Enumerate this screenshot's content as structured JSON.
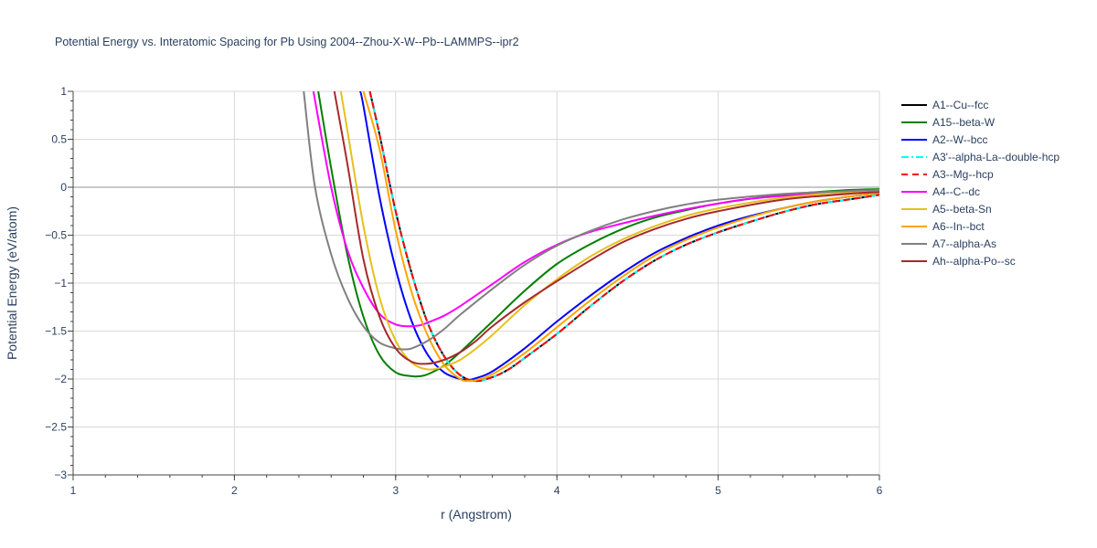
{
  "chart_data": {
    "type": "line",
    "title": "Potential Energy vs. Interatomic Spacing for Pb Using 2004--Zhou-X-W--Pb--LAMMPS--ipr2",
    "xlabel": "r (Angstrom)",
    "ylabel": "Potential Energy (eV/atom)",
    "xlim": [
      1,
      6
    ],
    "ylim": [
      -3,
      1
    ],
    "xticks": [
      1,
      2,
      3,
      4,
      5,
      6
    ],
    "yticks": [
      1,
      0.5,
      0,
      -0.5,
      -1,
      -1.5,
      -2,
      -2.5,
      -3
    ],
    "ytick_labels": [
      "1",
      "0.5",
      "0",
      "−0.5",
      "−1",
      "−1.5",
      "−2",
      "−2.5",
      "−3"
    ],
    "grid": true,
    "legend_position": "right",
    "series": [
      {
        "name": "A1--Cu--fcc",
        "color": "#000000",
        "dash": "solid",
        "x": [
          2.84,
          2.9,
          3.0,
          3.1,
          3.2,
          3.3,
          3.4,
          3.5,
          3.6,
          3.7,
          3.8,
          4.0,
          4.2,
          4.4,
          4.6,
          4.8,
          5.0,
          5.2,
          5.4,
          5.6,
          5.8,
          6.0
        ],
        "y": [
          1.0,
          0.55,
          -0.25,
          -0.9,
          -1.42,
          -1.76,
          -1.96,
          -2.02,
          -1.98,
          -1.9,
          -1.78,
          -1.53,
          -1.25,
          -0.99,
          -0.77,
          -0.6,
          -0.47,
          -0.36,
          -0.26,
          -0.18,
          -0.13,
          -0.08
        ]
      },
      {
        "name": "A15--beta-W",
        "color": "#008000",
        "dash": "solid",
        "x": [
          2.52,
          2.6,
          2.7,
          2.8,
          2.9,
          3.0,
          3.1,
          3.15,
          3.2,
          3.3,
          3.4,
          3.5,
          3.6,
          3.8,
          4.0,
          4.2,
          4.4,
          4.6,
          4.8,
          5.0,
          5.4,
          5.8,
          6.0
        ],
        "y": [
          1.0,
          0.2,
          -0.7,
          -1.35,
          -1.75,
          -1.93,
          -1.97,
          -1.97,
          -1.95,
          -1.86,
          -1.72,
          -1.56,
          -1.4,
          -1.08,
          -0.8,
          -0.6,
          -0.44,
          -0.32,
          -0.24,
          -0.17,
          -0.08,
          -0.03,
          -0.02
        ]
      },
      {
        "name": "A2--W--bcc",
        "color": "#0000ff",
        "dash": "solid",
        "x": [
          2.78,
          2.8,
          2.9,
          3.0,
          3.1,
          3.2,
          3.3,
          3.4,
          3.45,
          3.5,
          3.6,
          3.8,
          4.0,
          4.2,
          4.4,
          4.6,
          4.8,
          5.0,
          5.2,
          5.4,
          5.6,
          5.8,
          6.0
        ],
        "y": [
          1.0,
          0.85,
          -0.1,
          -0.85,
          -1.4,
          -1.75,
          -1.93,
          -2.0,
          -2.01,
          -1.99,
          -1.92,
          -1.68,
          -1.4,
          -1.14,
          -0.9,
          -0.69,
          -0.53,
          -0.4,
          -0.3,
          -0.22,
          -0.15,
          -0.1,
          -0.06
        ]
      },
      {
        "name": "A3'--alpha-La--double-hcp",
        "color": "#00ffff",
        "dash": "dashdot",
        "x": [
          2.84,
          2.9,
          3.0,
          3.1,
          3.2,
          3.3,
          3.4,
          3.5,
          3.6,
          3.7,
          3.8,
          4.0,
          4.2,
          4.4,
          4.6,
          4.8,
          5.0,
          5.2,
          5.4,
          5.6,
          5.8,
          6.0
        ],
        "y": [
          1.0,
          0.55,
          -0.25,
          -0.9,
          -1.42,
          -1.76,
          -1.96,
          -2.02,
          -1.98,
          -1.9,
          -1.78,
          -1.53,
          -1.25,
          -0.99,
          -0.77,
          -0.6,
          -0.47,
          -0.36,
          -0.26,
          -0.18,
          -0.13,
          -0.08
        ]
      },
      {
        "name": "A3--Mg--hcp",
        "color": "#ff0000",
        "dash": "dash",
        "x": [
          2.84,
          2.9,
          3.0,
          3.1,
          3.2,
          3.3,
          3.4,
          3.5,
          3.6,
          3.7,
          3.8,
          4.0,
          4.2,
          4.4,
          4.6,
          4.8,
          5.0,
          5.2,
          5.4,
          5.6,
          5.8,
          6.0
        ],
        "y": [
          1.0,
          0.55,
          -0.25,
          -0.9,
          -1.42,
          -1.76,
          -1.96,
          -2.02,
          -1.98,
          -1.9,
          -1.78,
          -1.53,
          -1.25,
          -0.99,
          -0.77,
          -0.6,
          -0.47,
          -0.36,
          -0.26,
          -0.18,
          -0.13,
          -0.08
        ]
      },
      {
        "name": "A4--C--dc",
        "color": "#ff00ff",
        "dash": "solid",
        "x": [
          2.49,
          2.6,
          2.7,
          2.8,
          2.9,
          3.0,
          3.08,
          3.15,
          3.2,
          3.3,
          3.4,
          3.6,
          3.8,
          4.0,
          4.2,
          4.4,
          4.6,
          4.8,
          5.0,
          5.2,
          5.6,
          6.0
        ],
        "y": [
          1.0,
          0.0,
          -0.65,
          -1.05,
          -1.32,
          -1.43,
          -1.45,
          -1.44,
          -1.41,
          -1.34,
          -1.24,
          -1.01,
          -0.78,
          -0.6,
          -0.47,
          -0.38,
          -0.3,
          -0.23,
          -0.17,
          -0.12,
          -0.07,
          -0.05
        ]
      },
      {
        "name": "A5--beta-Sn",
        "color": "#e6c01e",
        "dash": "solid",
        "x": [
          2.66,
          2.7,
          2.8,
          2.9,
          3.0,
          3.1,
          3.2,
          3.3,
          3.4,
          3.5,
          3.6,
          3.8,
          4.0,
          4.2,
          4.4,
          4.6,
          4.8,
          5.0,
          5.4,
          5.8,
          6.0
        ],
        "y": [
          1.0,
          0.6,
          -0.4,
          -1.15,
          -1.6,
          -1.83,
          -1.9,
          -1.87,
          -1.8,
          -1.68,
          -1.54,
          -1.23,
          -0.96,
          -0.73,
          -0.55,
          -0.41,
          -0.3,
          -0.22,
          -0.11,
          -0.05,
          -0.03
        ]
      },
      {
        "name": "A6--In--bct",
        "color": "#ffa500",
        "dash": "solid",
        "x": [
          2.8,
          2.9,
          3.0,
          3.1,
          3.2,
          3.3,
          3.4,
          3.45,
          3.5,
          3.6,
          3.8,
          4.0,
          4.2,
          4.4,
          4.6,
          4.8,
          5.0,
          5.2,
          5.4,
          5.6,
          5.8,
          6.0
        ],
        "y": [
          1.0,
          0.4,
          -0.45,
          -1.1,
          -1.55,
          -1.85,
          -2.0,
          -2.02,
          -2.01,
          -1.95,
          -1.73,
          -1.46,
          -1.19,
          -0.94,
          -0.72,
          -0.55,
          -0.42,
          -0.31,
          -0.22,
          -0.15,
          -0.1,
          -0.06
        ]
      },
      {
        "name": "A7--alpha-As",
        "color": "#808080",
        "dash": "solid",
        "x": [
          2.43,
          2.5,
          2.6,
          2.7,
          2.8,
          2.9,
          3.0,
          3.05,
          3.1,
          3.2,
          3.3,
          3.4,
          3.6,
          3.8,
          4.0,
          4.2,
          4.4,
          4.6,
          4.8,
          5.0,
          5.4,
          5.8,
          6.0
        ],
        "y": [
          1.0,
          0.0,
          -0.7,
          -1.15,
          -1.45,
          -1.62,
          -1.68,
          -1.69,
          -1.68,
          -1.6,
          -1.48,
          -1.33,
          -1.06,
          -0.81,
          -0.61,
          -0.46,
          -0.34,
          -0.25,
          -0.18,
          -0.13,
          -0.07,
          -0.04,
          -0.03
        ]
      },
      {
        "name": "Ah--alpha-Po--sc",
        "color": "#a52a2a",
        "dash": "solid",
        "x": [
          2.62,
          2.7,
          2.8,
          2.9,
          3.0,
          3.1,
          3.2,
          3.3,
          3.4,
          3.5,
          3.6,
          3.8,
          4.0,
          4.2,
          4.4,
          4.6,
          4.8,
          5.0,
          5.4,
          5.8,
          6.0
        ],
        "y": [
          1.0,
          0.25,
          -0.75,
          -1.35,
          -1.68,
          -1.82,
          -1.84,
          -1.8,
          -1.72,
          -1.6,
          -1.45,
          -1.2,
          -0.98,
          -0.77,
          -0.58,
          -0.44,
          -0.33,
          -0.25,
          -0.13,
          -0.07,
          -0.05
        ]
      }
    ]
  }
}
